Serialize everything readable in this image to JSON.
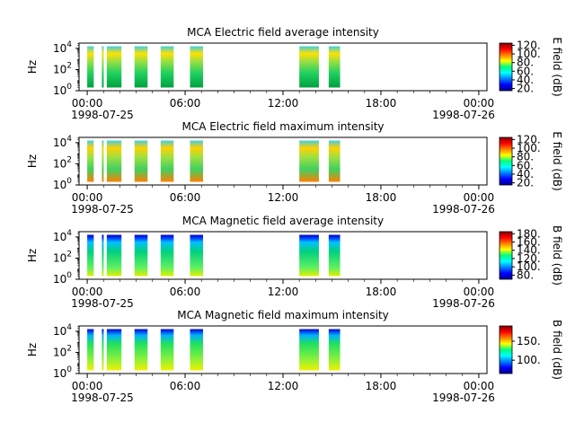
{
  "chart_data": [
    {
      "type": "heatmap",
      "title": "MCA  Electric field average intensity",
      "ylabel": "Hz",
      "yscale": "log",
      "y_ticks": [
        "10^0",
        "10^2",
        "10^4"
      ],
      "x_ticks": [
        "00:00",
        "06:00",
        "12:00",
        "18:00",
        "00:00"
      ],
      "x_dates": [
        "1998-07-25",
        "1998-07-26"
      ],
      "colorbar_label": "E field (dB)",
      "colorbar_ticks": [
        "20.",
        "40.",
        "60.",
        "80.",
        "100.",
        "120."
      ],
      "colorbar_range": [
        15,
        125
      ],
      "data_intervals_hours": [
        [
          0.0,
          0.4
        ],
        [
          0.9,
          1.0
        ],
        [
          1.2,
          2.1
        ],
        [
          2.9,
          3.7
        ],
        [
          4.5,
          5.3
        ],
        [
          6.3,
          7.1
        ],
        [
          13.0,
          14.2
        ],
        [
          14.8,
          15.5
        ]
      ]
    },
    {
      "type": "heatmap",
      "title": "MCA  Electric field maximum intensity",
      "ylabel": "Hz",
      "yscale": "log",
      "y_ticks": [
        "10^0",
        "10^2",
        "10^4"
      ],
      "x_ticks": [
        "00:00",
        "06:00",
        "12:00",
        "18:00",
        "00:00"
      ],
      "x_dates": [
        "1998-07-25",
        "1998-07-26"
      ],
      "colorbar_label": "E field (dB)",
      "colorbar_ticks": [
        "20.",
        "40.",
        "60.",
        "80.",
        "100.",
        "120."
      ],
      "colorbar_range": [
        15,
        125
      ],
      "data_intervals_hours": [
        [
          0.0,
          0.4
        ],
        [
          0.9,
          1.0
        ],
        [
          1.2,
          2.1
        ],
        [
          2.9,
          3.7
        ],
        [
          4.5,
          5.3
        ],
        [
          6.3,
          7.1
        ],
        [
          13.0,
          14.2
        ],
        [
          14.8,
          15.5
        ]
      ]
    },
    {
      "type": "heatmap",
      "title": "MCA  Magnetic field average intensity",
      "ylabel": "Hz",
      "yscale": "log",
      "y_ticks": [
        "10^0",
        "10^2",
        "10^4"
      ],
      "x_ticks": [
        "00:00",
        "06:00",
        "12:00",
        "18:00",
        "00:00"
      ],
      "x_dates": [
        "1998-07-25",
        "1998-07-26"
      ],
      "colorbar_label": "B field (dB)",
      "colorbar_ticks": [
        "80.",
        "100.",
        "120.",
        "140.",
        "160.",
        "180."
      ],
      "colorbar_range": [
        70,
        185
      ],
      "data_intervals_hours": [
        [
          0.0,
          0.4
        ],
        [
          0.9,
          1.0
        ],
        [
          1.2,
          2.1
        ],
        [
          2.9,
          3.7
        ],
        [
          4.5,
          5.3
        ],
        [
          6.3,
          7.1
        ],
        [
          13.0,
          14.2
        ],
        [
          14.8,
          15.5
        ]
      ]
    },
    {
      "type": "heatmap",
      "title": "MCA  Magnetic field maximum intensity",
      "ylabel": "Hz",
      "yscale": "log",
      "y_ticks": [
        "10^0",
        "10^2",
        "10^4"
      ],
      "x_ticks": [
        "00:00",
        "06:00",
        "12:00",
        "18:00",
        "00:00"
      ],
      "x_dates": [
        "1998-07-25",
        "1998-07-26"
      ],
      "colorbar_label": "B field (dB)",
      "colorbar_ticks": [
        "100.",
        "150."
      ],
      "colorbar_range": [
        65,
        190
      ],
      "data_intervals_hours": [
        [
          0.0,
          0.4
        ],
        [
          0.9,
          1.0
        ],
        [
          1.2,
          2.1
        ],
        [
          2.9,
          3.7
        ],
        [
          4.5,
          5.3
        ],
        [
          6.3,
          7.1
        ],
        [
          13.0,
          14.2
        ],
        [
          14.8,
          15.5
        ]
      ]
    }
  ]
}
